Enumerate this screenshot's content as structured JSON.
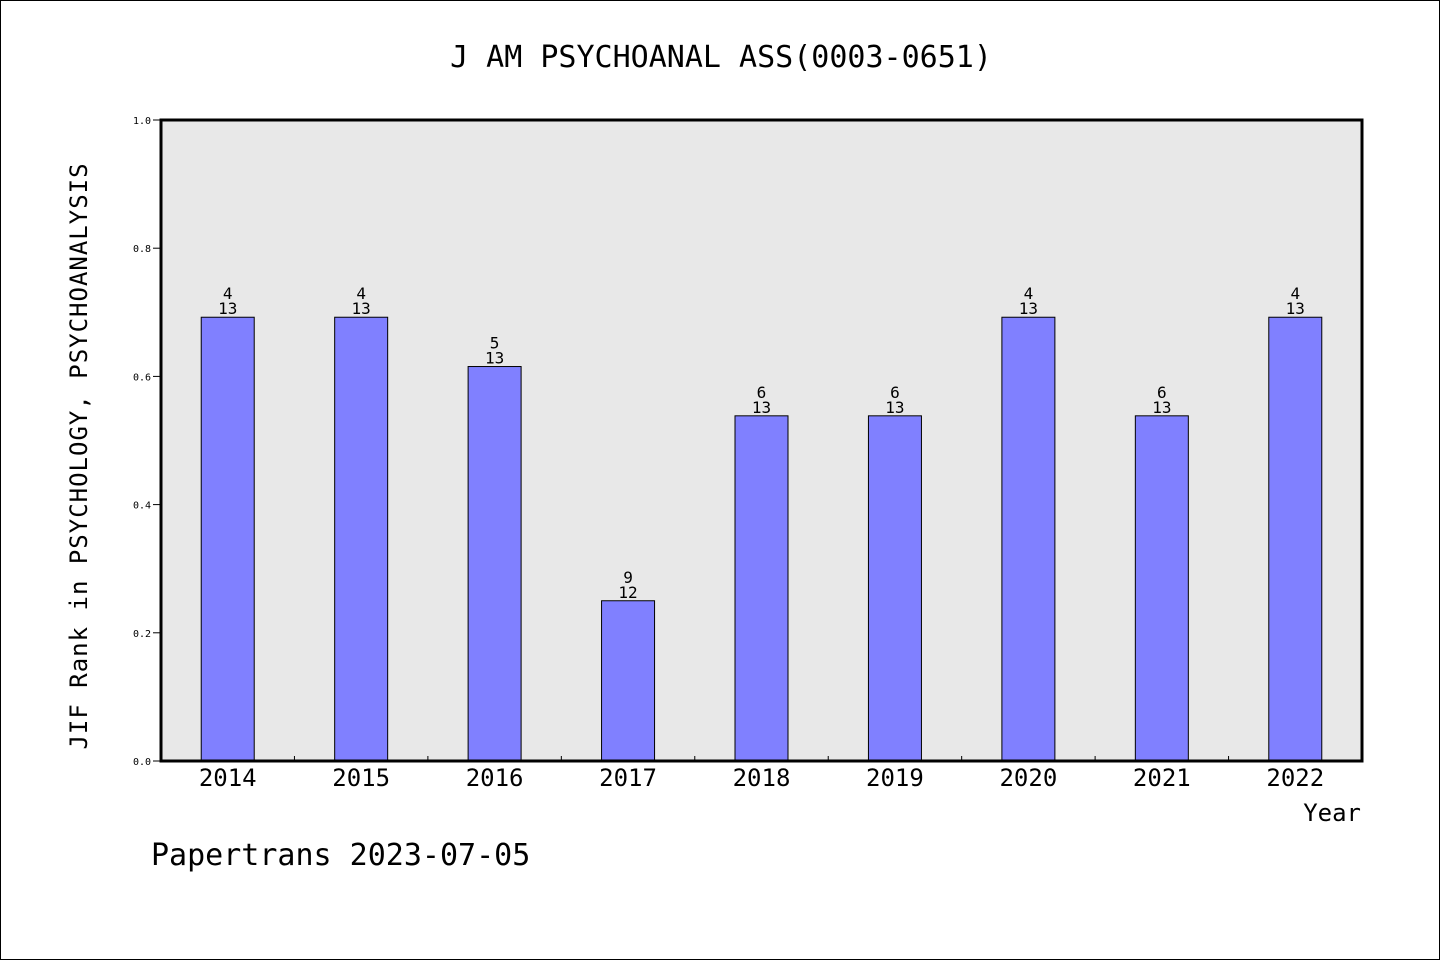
{
  "chart_data": {
    "type": "bar",
    "title": "J AM PSYCHOANAL ASS(0003-0651)",
    "xlabel": "Year",
    "ylabel": "JIF Rank in PSYCHOLOGY, PSYCHOANALYSIS",
    "ylim": [
      0,
      1.0
    ],
    "yticks": [
      "0.0",
      "0.2",
      "0.4",
      "0.6",
      "0.8",
      "1.0"
    ],
    "categories": [
      "2014",
      "2015",
      "2016",
      "2017",
      "2018",
      "2019",
      "2020",
      "2021",
      "2022"
    ],
    "values": [
      0.6923,
      0.6923,
      0.6154,
      0.25,
      0.5385,
      0.5385,
      0.6923,
      0.5385,
      0.6923
    ],
    "bar_labels": [
      {
        "rank": "4",
        "total": "13"
      },
      {
        "rank": "4",
        "total": "13"
      },
      {
        "rank": "5",
        "total": "13"
      },
      {
        "rank": "9",
        "total": "12"
      },
      {
        "rank": "6",
        "total": "13"
      },
      {
        "rank": "6",
        "total": "13"
      },
      {
        "rank": "4",
        "total": "13"
      },
      {
        "rank": "6",
        "total": "13"
      },
      {
        "rank": "4",
        "total": "13"
      }
    ],
    "grid": false,
    "bar_color": "#8080ff",
    "plot_background": "#e8e8e8"
  },
  "footer": "Papertrans 2023-07-05"
}
